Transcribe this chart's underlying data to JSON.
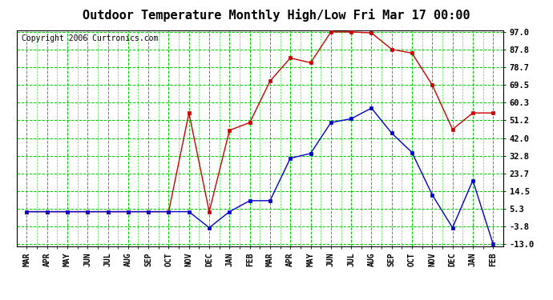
{
  "title": "Outdoor Temperature Monthly High/Low Fri Mar 17 00:00",
  "copyright": "Copyright 2006 Curtronics.com",
  "months": [
    "MAR",
    "APR",
    "MAY",
    "JUN",
    "JUL",
    "AUG",
    "SEP",
    "OCT",
    "NOV",
    "DEC",
    "JAN",
    "FEB",
    "MAR",
    "APR",
    "MAY",
    "JUN",
    "JUL",
    "AUG",
    "SEP",
    "OCT",
    "NOV",
    "DEC",
    "JAN",
    "FEB"
  ],
  "high_temps": [
    3.8,
    3.8,
    3.8,
    3.8,
    3.8,
    3.8,
    3.8,
    3.8,
    55.0,
    3.8,
    46.0,
    50.0,
    71.5,
    83.5,
    81.0,
    97.0,
    97.0,
    96.5,
    88.0,
    86.0,
    69.5,
    46.5,
    55.0,
    55.0
  ],
  "low_temps": [
    3.8,
    3.8,
    3.8,
    3.8,
    3.8,
    3.8,
    3.8,
    3.8,
    3.8,
    -4.5,
    3.8,
    9.5,
    9.5,
    31.5,
    34.0,
    50.0,
    52.0,
    57.5,
    44.5,
    34.5,
    12.5,
    -4.5,
    20.0,
    -13.0
  ],
  "yticks": [
    97.0,
    87.8,
    78.7,
    69.5,
    60.3,
    51.2,
    42.0,
    32.8,
    23.7,
    14.5,
    5.3,
    -3.8,
    -13.0
  ],
  "ymin": -13.0,
  "ymax": 97.0,
  "high_color": "#cc0000",
  "low_color": "#0000cc",
  "grid_color": "#00cc00",
  "bg_color": "#ffffff",
  "title_fontsize": 11,
  "copyright_fontsize": 7,
  "tick_fontsize": 7.5,
  "xlabel_fontsize": 7
}
